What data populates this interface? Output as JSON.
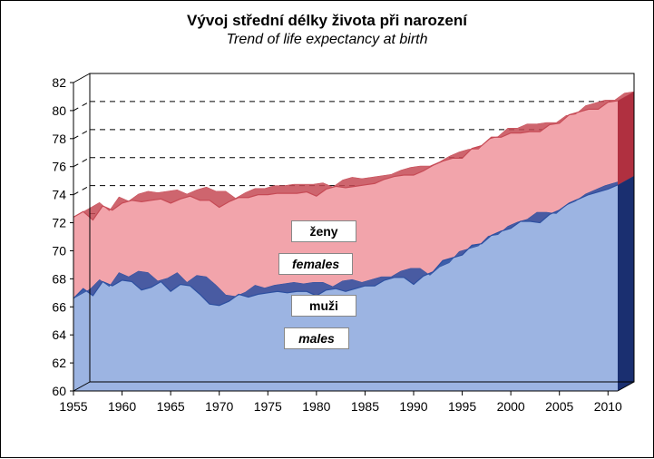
{
  "chart": {
    "type": "area",
    "title_cs": "Vývoj střední délky života při narození",
    "title_en": "Trend of life expectancy at birth",
    "title_fontsize": 17,
    "subtitle_fontsize": 16,
    "background_color": "#ffffff",
    "plot_area_width": 600,
    "plot_area_height": 340,
    "depth_offset_x": 18,
    "depth_offset_y": 10,
    "x": {
      "min": 1955,
      "max": 2011,
      "tick_start": 1955,
      "tick_step": 5,
      "tick_end": 2010,
      "label_fontsize": 14
    },
    "y": {
      "min": 60,
      "max": 82,
      "tick_step": 2,
      "label_fontsize": 14,
      "gridlines": [
        62,
        64,
        66,
        68,
        70,
        72,
        74,
        76,
        78,
        80
      ],
      "grid_dash": "6,5",
      "grid_color": "#000000",
      "axis_color": "#000000"
    },
    "series": {
      "females": {
        "label_cs": "ženy",
        "label_en": "females",
        "fill": "#f2a4ab",
        "line_color": "#c64a55",
        "end_bar_color": "#b03040",
        "values": [
          {
            "x": 1955,
            "y": 72.4
          },
          {
            "x": 1956,
            "y": 72.8
          },
          {
            "x": 1957,
            "y": 72.2
          },
          {
            "x": 1958,
            "y": 73.2
          },
          {
            "x": 1959,
            "y": 72.9
          },
          {
            "x": 1960,
            "y": 73.4
          },
          {
            "x": 1961,
            "y": 73.6
          },
          {
            "x": 1962,
            "y": 73.5
          },
          {
            "x": 1963,
            "y": 73.6
          },
          {
            "x": 1964,
            "y": 73.7
          },
          {
            "x": 1965,
            "y": 73.4
          },
          {
            "x": 1966,
            "y": 73.7
          },
          {
            "x": 1967,
            "y": 73.9
          },
          {
            "x": 1968,
            "y": 73.6
          },
          {
            "x": 1969,
            "y": 73.6
          },
          {
            "x": 1970,
            "y": 73.1
          },
          {
            "x": 1971,
            "y": 73.5
          },
          {
            "x": 1972,
            "y": 73.8
          },
          {
            "x": 1973,
            "y": 73.8
          },
          {
            "x": 1974,
            "y": 74.0
          },
          {
            "x": 1975,
            "y": 74.0
          },
          {
            "x": 1976,
            "y": 74.1
          },
          {
            "x": 1977,
            "y": 74.1
          },
          {
            "x": 1978,
            "y": 74.1
          },
          {
            "x": 1979,
            "y": 74.2
          },
          {
            "x": 1980,
            "y": 73.9
          },
          {
            "x": 1981,
            "y": 74.4
          },
          {
            "x": 1982,
            "y": 74.6
          },
          {
            "x": 1983,
            "y": 74.5
          },
          {
            "x": 1984,
            "y": 74.6
          },
          {
            "x": 1985,
            "y": 74.7
          },
          {
            "x": 1986,
            "y": 74.8
          },
          {
            "x": 1987,
            "y": 75.1
          },
          {
            "x": 1988,
            "y": 75.3
          },
          {
            "x": 1989,
            "y": 75.4
          },
          {
            "x": 1990,
            "y": 75.4
          },
          {
            "x": 1991,
            "y": 75.7
          },
          {
            "x": 1992,
            "y": 76.1
          },
          {
            "x": 1993,
            "y": 76.4
          },
          {
            "x": 1994,
            "y": 76.6
          },
          {
            "x": 1995,
            "y": 76.6
          },
          {
            "x": 1996,
            "y": 77.3
          },
          {
            "x": 1997,
            "y": 77.5
          },
          {
            "x": 1998,
            "y": 78.1
          },
          {
            "x": 1999,
            "y": 78.1
          },
          {
            "x": 2000,
            "y": 78.4
          },
          {
            "x": 2001,
            "y": 78.4
          },
          {
            "x": 2002,
            "y": 78.5
          },
          {
            "x": 2003,
            "y": 78.5
          },
          {
            "x": 2004,
            "y": 79.0
          },
          {
            "x": 2005,
            "y": 79.1
          },
          {
            "x": 2006,
            "y": 79.7
          },
          {
            "x": 2007,
            "y": 79.9
          },
          {
            "x": 2008,
            "y": 80.1
          },
          {
            "x": 2009,
            "y": 80.1
          },
          {
            "x": 2010,
            "y": 80.6
          },
          {
            "x": 2011,
            "y": 80.7
          }
        ]
      },
      "males": {
        "label_cs": "muži",
        "label_en": "males",
        "fill": "#9cb4e2",
        "line_color": "#2c4fa0",
        "end_bar_color": "#1a2f70",
        "values": [
          {
            "x": 1955,
            "y": 66.6
          },
          {
            "x": 1956,
            "y": 67.3
          },
          {
            "x": 1957,
            "y": 66.8
          },
          {
            "x": 1958,
            "y": 67.8
          },
          {
            "x": 1959,
            "y": 67.5
          },
          {
            "x": 1960,
            "y": 67.9
          },
          {
            "x": 1961,
            "y": 67.8
          },
          {
            "x": 1962,
            "y": 67.2
          },
          {
            "x": 1963,
            "y": 67.4
          },
          {
            "x": 1964,
            "y": 67.8
          },
          {
            "x": 1965,
            "y": 67.1
          },
          {
            "x": 1966,
            "y": 67.6
          },
          {
            "x": 1967,
            "y": 67.5
          },
          {
            "x": 1968,
            "y": 66.9
          },
          {
            "x": 1969,
            "y": 66.2
          },
          {
            "x": 1970,
            "y": 66.1
          },
          {
            "x": 1971,
            "y": 66.4
          },
          {
            "x": 1972,
            "y": 66.9
          },
          {
            "x": 1973,
            "y": 66.7
          },
          {
            "x": 1974,
            "y": 66.9
          },
          {
            "x": 1975,
            "y": 67.0
          },
          {
            "x": 1976,
            "y": 67.1
          },
          {
            "x": 1977,
            "y": 67.0
          },
          {
            "x": 1978,
            "y": 67.1
          },
          {
            "x": 1979,
            "y": 67.1
          },
          {
            "x": 1980,
            "y": 66.8
          },
          {
            "x": 1981,
            "y": 67.2
          },
          {
            "x": 1982,
            "y": 67.3
          },
          {
            "x": 1983,
            "y": 67.1
          },
          {
            "x": 1984,
            "y": 67.3
          },
          {
            "x": 1985,
            "y": 67.5
          },
          {
            "x": 1986,
            "y": 67.5
          },
          {
            "x": 1987,
            "y": 67.9
          },
          {
            "x": 1988,
            "y": 68.1
          },
          {
            "x": 1989,
            "y": 68.1
          },
          {
            "x": 1990,
            "y": 67.6
          },
          {
            "x": 1991,
            "y": 68.2
          },
          {
            "x": 1992,
            "y": 68.5
          },
          {
            "x": 1993,
            "y": 69.3
          },
          {
            "x": 1994,
            "y": 69.5
          },
          {
            "x": 1995,
            "y": 69.7
          },
          {
            "x": 1996,
            "y": 70.4
          },
          {
            "x": 1997,
            "y": 70.5
          },
          {
            "x": 1998,
            "y": 71.1
          },
          {
            "x": 1999,
            "y": 71.4
          },
          {
            "x": 2000,
            "y": 71.6
          },
          {
            "x": 2001,
            "y": 72.1
          },
          {
            "x": 2002,
            "y": 72.1
          },
          {
            "x": 2003,
            "y": 72.0
          },
          {
            "x": 2004,
            "y": 72.6
          },
          {
            "x": 2005,
            "y": 72.9
          },
          {
            "x": 2006,
            "y": 73.4
          },
          {
            "x": 2007,
            "y": 73.7
          },
          {
            "x": 2008,
            "y": 74.0
          },
          {
            "x": 2009,
            "y": 74.2
          },
          {
            "x": 2010,
            "y": 74.4
          },
          {
            "x": 2011,
            "y": 74.7
          }
        ]
      }
    },
    "front_face_fill": "#e8e8e8"
  }
}
